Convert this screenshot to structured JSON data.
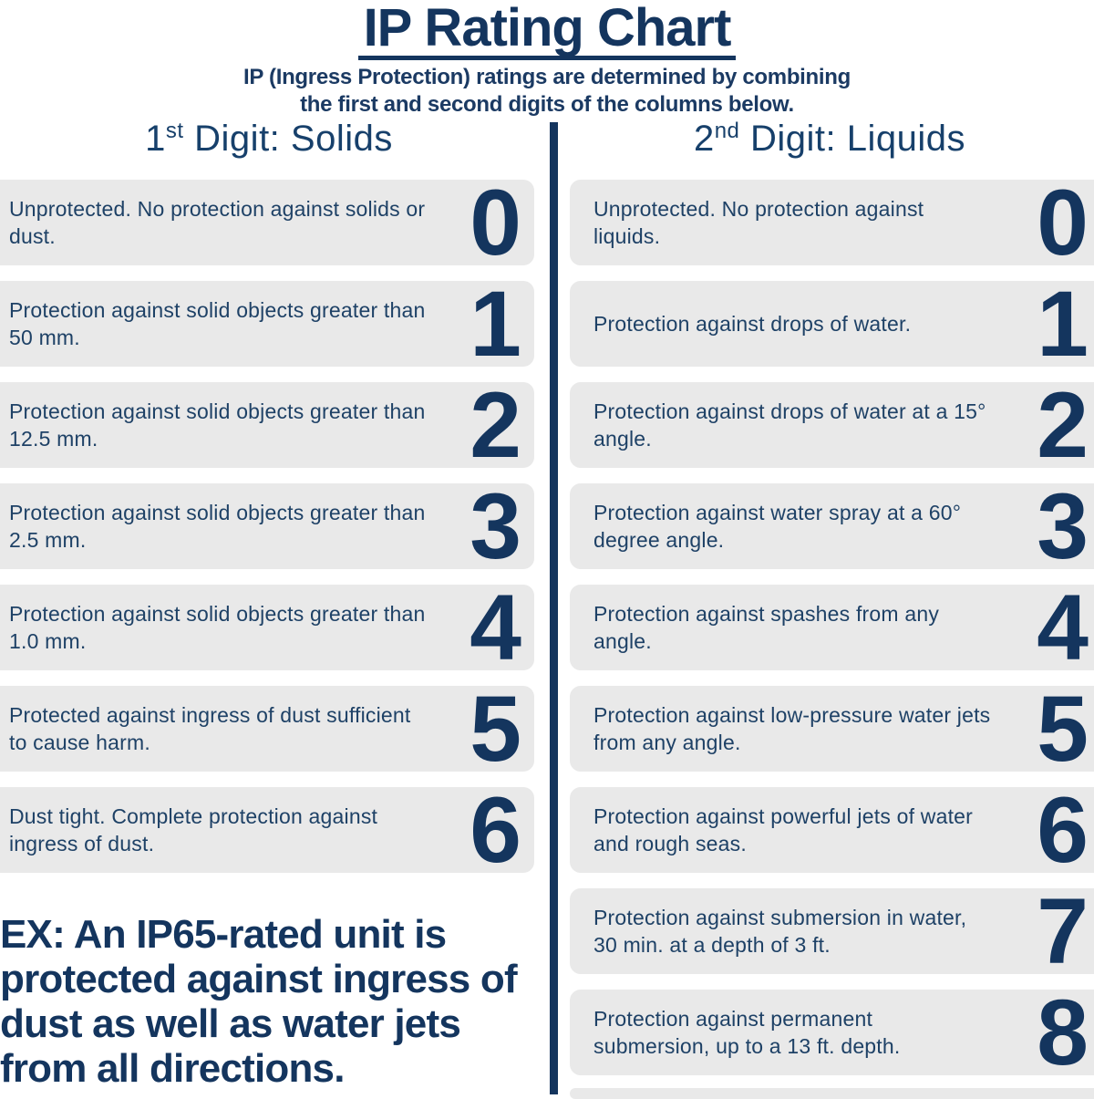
{
  "page": {
    "title": "IP Rating Chart",
    "subtitle_line1": "IP (Ingress Protection) ratings are determined by combining",
    "subtitle_line2": "the first and second digits of the columns below."
  },
  "colors": {
    "navy": "#14355e",
    "body_text": "#1e4166",
    "card_background": "#e9e9e9"
  },
  "columns": {
    "solids": {
      "heading_number": "1",
      "heading_ordinal_suffix": "st",
      "heading_rest": " Digit: Solids",
      "rows": [
        {
          "digit": "0",
          "text": "Unprotected. No protection against solids or dust."
        },
        {
          "digit": "1",
          "text": "Protection against solid objects greater than 50 mm."
        },
        {
          "digit": "2",
          "text": "Protection against solid objects greater than 12.5 mm."
        },
        {
          "digit": "3",
          "text": "Protection against solid objects greater than 2.5 mm."
        },
        {
          "digit": "4",
          "text": "Protection against solid objects greater than 1.0 mm."
        },
        {
          "digit": "5",
          "text": "Protected against ingress of dust sufficient to cause harm."
        },
        {
          "digit": "6",
          "text": "Dust tight. Complete protection against ingress of dust."
        }
      ]
    },
    "liquids": {
      "heading_number": "2",
      "heading_ordinal_suffix": "nd",
      "heading_rest": " Digit: Liquids",
      "rows": [
        {
          "digit": "0",
          "text": "Unprotected. No protection against liquids."
        },
        {
          "digit": "1",
          "text": "Protection against drops of water."
        },
        {
          "digit": "2",
          "text": "Protection against drops of water at a 15° angle."
        },
        {
          "digit": "3",
          "text": "Protection against water spray at a 60° degree angle."
        },
        {
          "digit": "4",
          "text": "Protection against spashes from any angle."
        },
        {
          "digit": "5",
          "text": "Protection against low-pressure water jets from any angle."
        },
        {
          "digit": "6",
          "text": "Protection against powerful jets of water and rough seas."
        },
        {
          "digit": "7",
          "text": "Protection against submersion in water, 30 min. at a depth of 3 ft."
        },
        {
          "digit": "8",
          "text": "Protection against permanent submersion, up to a 13 ft. depth."
        }
      ]
    }
  },
  "example": {
    "text": "EX: An IP65-rated unit is protected against ingress of dust as well as water jets from all directions."
  }
}
